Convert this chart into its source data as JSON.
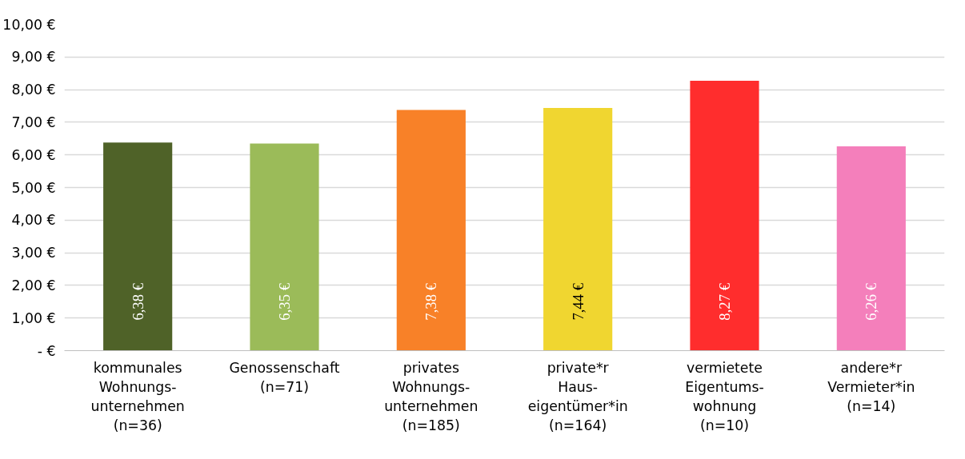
{
  "chart_data": {
    "type": "bar",
    "categories": [
      "kommunales\nWohnungs-\nunternehmen\n(n=36)",
      "Genossenschaft\n(n=71)",
      "privates\nWohnungs-\nunternehmen\n(n=185)",
      "private*r\nHaus-\neigentümer*in\n(n=164)",
      "vermietete\nEigentums-\nwohnung\n(n=10)",
      "andere*r\nVermieter*in\n(n=14)"
    ],
    "values": [
      6.38,
      6.35,
      7.38,
      7.44,
      8.27,
      6.26
    ],
    "colors": [
      "#4f6228",
      "#9bbb59",
      "#f88128",
      "#f0d630",
      "#ff2d2d",
      "#f47fbb"
    ],
    "value_labels": [
      "6,38 €",
      "6,35 €",
      "7,38 €",
      "7,44 €",
      "8,27 €",
      "6,26 €"
    ],
    "ylim": [
      0,
      10
    ],
    "yticks": [
      {
        "value": 0,
        "label": "- €"
      },
      {
        "value": 1,
        "label": "1,00 €"
      },
      {
        "value": 2,
        "label": "2,00 €"
      },
      {
        "value": 3,
        "label": "3,00 €"
      },
      {
        "value": 4,
        "label": "4,00 €"
      },
      {
        "value": 5,
        "label": "5,00 €"
      },
      {
        "value": 6,
        "label": "6,00 €"
      },
      {
        "value": 7,
        "label": "7,00 €"
      },
      {
        "value": 8,
        "label": "8,00 €"
      },
      {
        "value": 9,
        "label": "9,00 €"
      },
      {
        "value": 10,
        "label": "10,00 €"
      }
    ],
    "grid": "y"
  }
}
